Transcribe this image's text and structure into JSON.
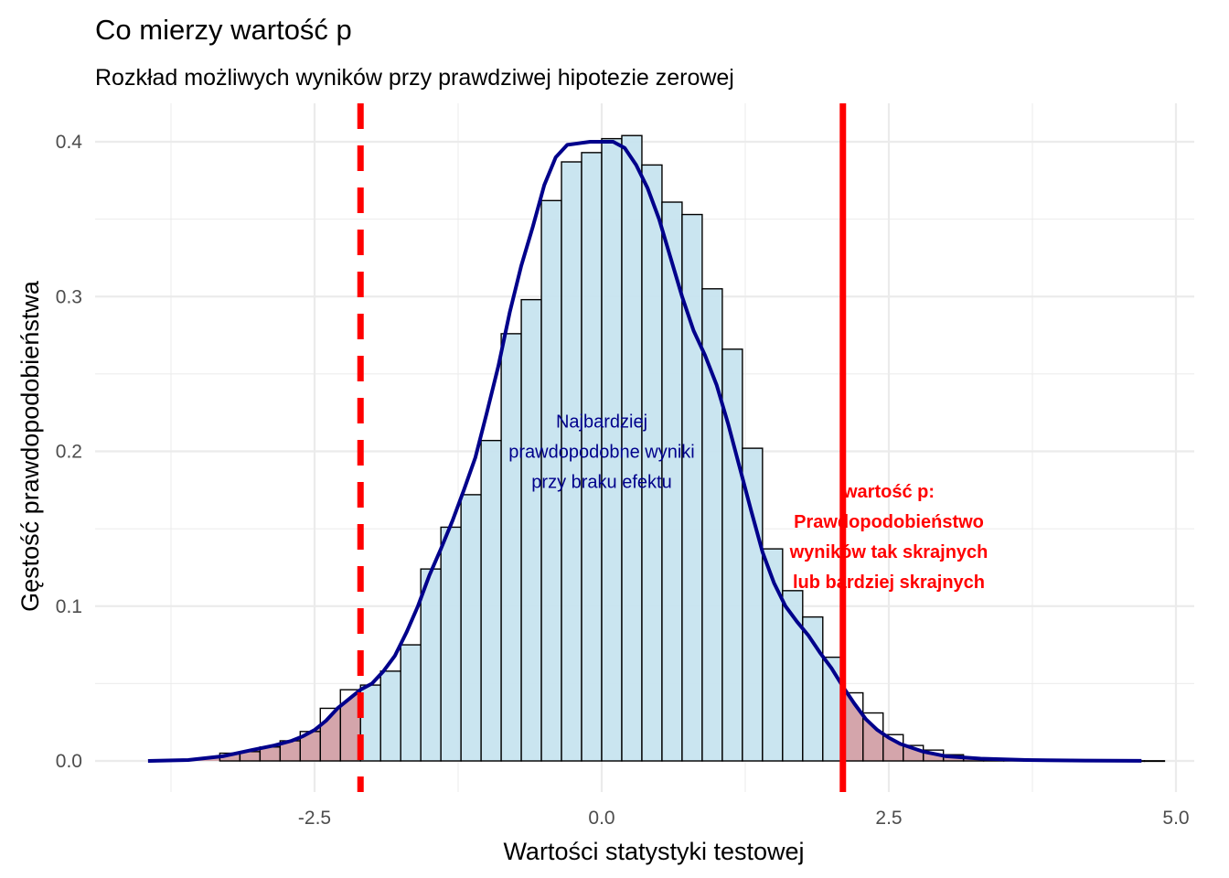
{
  "chart_data": {
    "type": "bar",
    "title": "Co mierzy wartość p",
    "subtitle": "Rozkład możliwych wyników przy prawdziwej hipotezie zerowej",
    "xlabel": "Wartości statystyki testowej",
    "ylabel": "Gęstość prawdopodobieństwa",
    "xlim": [
      -4.5,
      5.2
    ],
    "ylim": [
      -0.02,
      0.43
    ],
    "xticks": [
      -2.5,
      0.0,
      2.5,
      5.0
    ],
    "xtick_labels": [
      "-2.5",
      "0.0",
      "2.5",
      "5.0"
    ],
    "yticks": [
      0.0,
      0.1,
      0.2,
      0.3,
      0.4
    ],
    "ytick_labels": [
      "0.0",
      "0.1",
      "0.2",
      "0.3",
      "0.4"
    ],
    "grid": true,
    "bin_width": 0.175,
    "bins": [
      {
        "x0": -3.325,
        "x1": -3.15,
        "y": 0.005
      },
      {
        "x0": -3.15,
        "x1": -2.975,
        "y": 0.006
      },
      {
        "x0": -2.975,
        "x1": -2.8,
        "y": 0.009
      },
      {
        "x0": -2.8,
        "x1": -2.625,
        "y": 0.013
      },
      {
        "x0": -2.625,
        "x1": -2.45,
        "y": 0.019
      },
      {
        "x0": -2.45,
        "x1": -2.275,
        "y": 0.034
      },
      {
        "x0": -2.275,
        "x1": -2.1,
        "y": 0.046
      },
      {
        "x0": -2.1,
        "x1": -1.925,
        "y": 0.049
      },
      {
        "x0": -1.925,
        "x1": -1.75,
        "y": 0.058
      },
      {
        "x0": -1.75,
        "x1": -1.575,
        "y": 0.075
      },
      {
        "x0": -1.575,
        "x1": -1.4,
        "y": 0.124
      },
      {
        "x0": -1.4,
        "x1": -1.225,
        "y": 0.151
      },
      {
        "x0": -1.225,
        "x1": -1.05,
        "y": 0.172
      },
      {
        "x0": -1.05,
        "x1": -0.875,
        "y": 0.207
      },
      {
        "x0": -0.875,
        "x1": -0.7,
        "y": 0.276
      },
      {
        "x0": -0.7,
        "x1": -0.525,
        "y": 0.298
      },
      {
        "x0": -0.525,
        "x1": -0.35,
        "y": 0.362
      },
      {
        "x0": -0.35,
        "x1": -0.175,
        "y": 0.387
      },
      {
        "x0": -0.175,
        "x1": 0.0,
        "y": 0.393
      },
      {
        "x0": 0.0,
        "x1": 0.175,
        "y": 0.402
      },
      {
        "x0": 0.175,
        "x1": 0.35,
        "y": 0.404
      },
      {
        "x0": 0.35,
        "x1": 0.525,
        "y": 0.385
      },
      {
        "x0": 0.525,
        "x1": 0.7,
        "y": 0.361
      },
      {
        "x0": 0.7,
        "x1": 0.875,
        "y": 0.353
      },
      {
        "x0": 0.875,
        "x1": 1.05,
        "y": 0.305
      },
      {
        "x0": 1.05,
        "x1": 1.225,
        "y": 0.266
      },
      {
        "x0": 1.225,
        "x1": 1.4,
        "y": 0.202
      },
      {
        "x0": 1.4,
        "x1": 1.575,
        "y": 0.137
      },
      {
        "x0": 1.575,
        "x1": 1.75,
        "y": 0.11
      },
      {
        "x0": 1.75,
        "x1": 1.925,
        "y": 0.093
      },
      {
        "x0": 1.925,
        "x1": 2.1,
        "y": 0.067
      },
      {
        "x0": 2.1,
        "x1": 2.275,
        "y": 0.044
      },
      {
        "x0": 2.275,
        "x1": 2.45,
        "y": 0.031
      },
      {
        "x0": 2.45,
        "x1": 2.625,
        "y": 0.017
      },
      {
        "x0": 2.625,
        "x1": 2.8,
        "y": 0.01
      },
      {
        "x0": 2.8,
        "x1": 2.975,
        "y": 0.007
      },
      {
        "x0": 2.975,
        "x1": 3.15,
        "y": 0.004
      },
      {
        "x0": 3.15,
        "x1": 3.325,
        "y": 0.002
      },
      {
        "x0": 3.325,
        "x1": 3.5,
        "y": 0.001
      },
      {
        "x0": 3.5,
        "x1": 3.675,
        "y": 0.001
      },
      {
        "x0": 3.675,
        "x1": 3.85,
        "y": 0.0005
      },
      {
        "x0": 3.85,
        "x1": 4.025,
        "y": 0.0003
      },
      {
        "x0": 4.025,
        "x1": 4.2,
        "y": 0.0002
      },
      {
        "x0": 4.2,
        "x1": 4.375,
        "y": 0.0002
      },
      {
        "x0": 4.375,
        "x1": 4.55,
        "y": 0.0001
      },
      {
        "x0": 4.55,
        "x1": 4.725,
        "y": 0.0001
      },
      {
        "x0": 4.725,
        "x1": 4.9,
        "y": 0.0001
      }
    ],
    "density": {
      "x": [
        -3.95,
        -3.6,
        -3.3,
        -3.05,
        -2.85,
        -2.7,
        -2.6,
        -2.5,
        -2.4,
        -2.3,
        -2.2,
        -2.1,
        -2.0,
        -1.9,
        -1.8,
        -1.7,
        -1.6,
        -1.5,
        -1.4,
        -1.3,
        -1.2,
        -1.1,
        -1.0,
        -0.9,
        -0.8,
        -0.7,
        -0.6,
        -0.5,
        -0.4,
        -0.3,
        -0.2,
        -0.1,
        0.0,
        0.1,
        0.2,
        0.3,
        0.4,
        0.5,
        0.6,
        0.7,
        0.8,
        0.9,
        1.0,
        1.1,
        1.2,
        1.3,
        1.4,
        1.5,
        1.6,
        1.7,
        1.8,
        1.9,
        2.0,
        2.1,
        2.2,
        2.3,
        2.4,
        2.5,
        2.6,
        2.8,
        3.0,
        3.3,
        3.7,
        4.2,
        4.7
      ],
      "y": [
        0.0,
        0.0006,
        0.003,
        0.007,
        0.01,
        0.013,
        0.016,
        0.02,
        0.026,
        0.034,
        0.04,
        0.046,
        0.05,
        0.058,
        0.068,
        0.083,
        0.1,
        0.12,
        0.137,
        0.155,
        0.175,
        0.196,
        0.225,
        0.255,
        0.29,
        0.32,
        0.345,
        0.372,
        0.39,
        0.398,
        0.399,
        0.4,
        0.4,
        0.4,
        0.396,
        0.385,
        0.37,
        0.35,
        0.325,
        0.3,
        0.278,
        0.262,
        0.243,
        0.218,
        0.19,
        0.162,
        0.135,
        0.115,
        0.1,
        0.09,
        0.081,
        0.07,
        0.06,
        0.048,
        0.037,
        0.027,
        0.02,
        0.015,
        0.011,
        0.006,
        0.003,
        0.0015,
        0.0006,
        0.0002,
        0.0001
      ]
    },
    "lines": [
      {
        "x": -2.1,
        "style": "dashed",
        "color": "#ff0000"
      },
      {
        "x": 2.1,
        "style": "solid",
        "color": "#ff0000"
      }
    ],
    "annotations": [
      {
        "lines": [
          "Najbardziej",
          "prawdopodobne wyniki",
          "przy braku efektu"
        ],
        "x": 0.0,
        "y": 0.2,
        "color": "#00008b",
        "bold": false
      },
      {
        "lines": [
          "wartość p:",
          "Prawdopodobieństwo",
          "wyników tak skrajnych",
          "lub bardziej skrajnych"
        ],
        "x": 2.5,
        "y": 0.145,
        "color": "#ff0000",
        "bold": true
      }
    ],
    "colors": {
      "bar_fill": "#c7e4ef",
      "tail_fill": "#d4a5ab",
      "density_line": "#00008b",
      "critical_line": "#ff0000",
      "grid": "#ebebeb",
      "text": "#000000",
      "tick_text": "#4d4d4d"
    }
  }
}
